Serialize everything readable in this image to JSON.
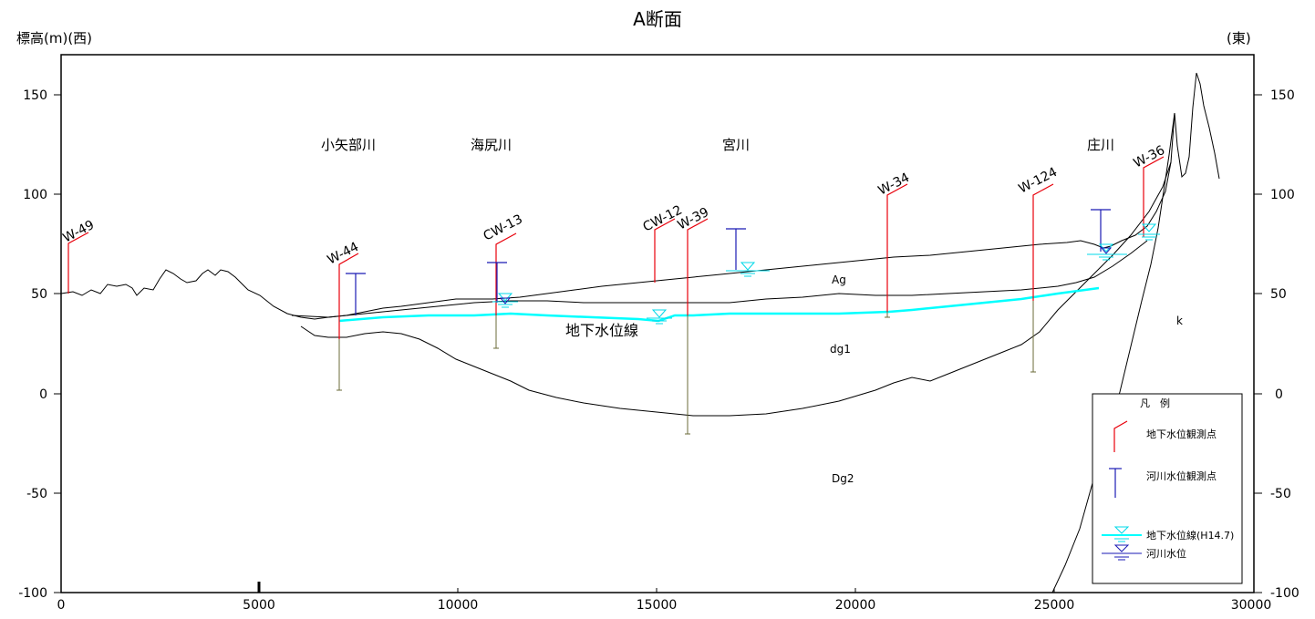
{
  "title": "A断面",
  "y_axis_label": "標高(m)(西)",
  "east_label": "(東)",
  "x_ticks": [
    "0",
    "5000",
    "10000",
    "15000",
    "20000",
    "25000",
    "30000"
  ],
  "y_ticks": [
    "150",
    "100",
    "50",
    "0",
    "-50",
    "-100"
  ],
  "rivers": [
    "小矢部川",
    "海尻川",
    "宮川",
    "庄川"
  ],
  "wells": [
    "W-49",
    "W-44",
    "CW-13",
    "CW-12",
    "W-39",
    "W-34",
    "W-124",
    "W-36"
  ],
  "layers": [
    "Ag",
    "dg1",
    "Dg2",
    "k"
  ],
  "groundwater_label": "地下水位線",
  "legend": {
    "title": "凡　例",
    "groundwater_point": "地下水位観測点",
    "river_point": "河川水位観測点",
    "groundwater_line": "地下水位線(H14.7)",
    "river_level": "河川水位"
  },
  "colors": {
    "well_red": "#e8000b",
    "river_blue": "#1a1ab4",
    "groundwater_cyan": "#00ffff",
    "casing_olive": "#6b6b3a"
  }
}
